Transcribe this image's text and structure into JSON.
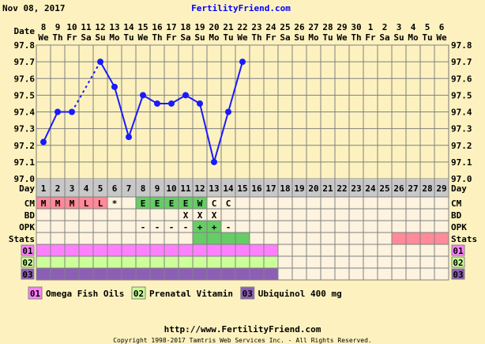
{
  "header": {
    "date": "Nov 08, 2017",
    "site": "FertilityFriend.com"
  },
  "chart_data": {
    "type": "line",
    "row_label_date": "Date",
    "row_label_day": "Day",
    "dates": [
      "8",
      "9",
      "10",
      "11",
      "12",
      "13",
      "14",
      "15",
      "16",
      "17",
      "18",
      "19",
      "20",
      "21",
      "22",
      "23",
      "24",
      "25",
      "26",
      "27",
      "28",
      "29",
      "30",
      "1",
      "2",
      "3",
      "4",
      "5",
      "6"
    ],
    "weekdays": [
      "We",
      "Th",
      "Fr",
      "Sa",
      "Su",
      "Mo",
      "Tu",
      "We",
      "Th",
      "Fr",
      "Sa",
      "Su",
      "Mo",
      "Tu",
      "We",
      "Th",
      "Fr",
      "Sa",
      "Su",
      "Mo",
      "Tu",
      "We",
      "Th",
      "Fr",
      "Sa",
      "Su",
      "Mo",
      "Tu",
      "We"
    ],
    "days": [
      "1",
      "2",
      "3",
      "4",
      "5",
      "6",
      "7",
      "8",
      "9",
      "10",
      "11",
      "12",
      "13",
      "14",
      "15",
      "16",
      "17",
      "18",
      "19",
      "20",
      "21",
      "22",
      "23",
      "24",
      "25",
      "26",
      "27",
      "28",
      "29"
    ],
    "temperatures": [
      97.22,
      97.4,
      97.4,
      null,
      97.7,
      97.55,
      97.25,
      97.5,
      97.45,
      97.45,
      97.5,
      97.45,
      97.1,
      97.4,
      97.7,
      null,
      null,
      null,
      null,
      null,
      null,
      null,
      null,
      null,
      null,
      null,
      null,
      null,
      null
    ],
    "ylim": [
      97.0,
      97.8
    ],
    "yticks": [
      "97.8",
      "97.7",
      "97.6",
      "97.5",
      "97.4",
      "97.3",
      "97.2",
      "97.1",
      "97.0"
    ],
    "line_color": "#1a1aff",
    "grid": true
  },
  "rows": [
    {
      "label": "CM",
      "values": [
        "M",
        "M",
        "M",
        "L",
        "L",
        "*",
        "",
        "E",
        "E",
        "E",
        "E",
        "W",
        "C",
        "C",
        "",
        "",
        "",
        "",
        "",
        "",
        "",
        "",
        "",
        "",
        "",
        "",
        "",
        "",
        ""
      ],
      "colors": [
        "#ff8a99",
        "#ff8a99",
        "#ff8a99",
        "#ff8a99",
        "#ff8a99",
        "",
        "",
        "#66cc66",
        "#66cc66",
        "#66cc66",
        "#66cc66",
        "#66cc66",
        "",
        "",
        "",
        "",
        "",
        "",
        "",
        "",
        "",
        "",
        "",
        "",
        "",
        "",
        "",
        "",
        ""
      ]
    },
    {
      "label": "BD",
      "values": [
        "",
        "",
        "",
        "",
        "",
        "",
        "",
        "",
        "",
        "",
        "X",
        "X",
        "X",
        "",
        "",
        "",
        "",
        "",
        "",
        "",
        "",
        "",
        "",
        "",
        "",
        "",
        "",
        "",
        ""
      ],
      "colors": []
    },
    {
      "label": "OPK",
      "values": [
        "",
        "",
        "",
        "",
        "",
        "",
        "",
        "-",
        "-",
        "-",
        "-",
        "+",
        "+",
        "-",
        "",
        "",
        "",
        "",
        "",
        "",
        "",
        "",
        "",
        "",
        "",
        "",
        "",
        "",
        ""
      ],
      "colors": [
        "",
        "",
        "",
        "",
        "",
        "",
        "",
        "",
        "",
        "",
        "",
        "#66cc66",
        "#66cc66",
        "",
        "",
        "",
        "",
        "",
        "",
        "",
        "",
        "",
        "",
        "",
        "",
        "",
        "",
        "",
        ""
      ]
    },
    {
      "label": "Stats",
      "values": [],
      "colors": [
        "",
        "",
        "",
        "",
        "",
        "",
        "",
        "",
        "",
        "",
        "",
        "#66cc66",
        "#66cc66",
        "#66cc66",
        "#66cc66",
        "",
        "",
        "",
        "",
        "",
        "",
        "",
        "",
        "",
        "",
        "#ff8a99",
        "#ff8a99",
        "#ff8a99",
        "#ff8a99"
      ]
    }
  ],
  "supplements": [
    {
      "code": "01",
      "name": "Omega Fish Oils",
      "color": "#ff80ff",
      "days_taken": 17
    },
    {
      "code": "02",
      "name": "Prenatal Vitamin",
      "color": "#ccff99",
      "days_taken": 17
    },
    {
      "code": "03",
      "name": "Ubiquinol 400 mg",
      "color": "#8c5fb5",
      "days_taken": 17
    }
  ],
  "footer": {
    "url": "http://www.FertilityFriend.com",
    "copyright": "Copyright 1998-2017 Tamtris Web Services Inc. - All Rights Reserved."
  }
}
